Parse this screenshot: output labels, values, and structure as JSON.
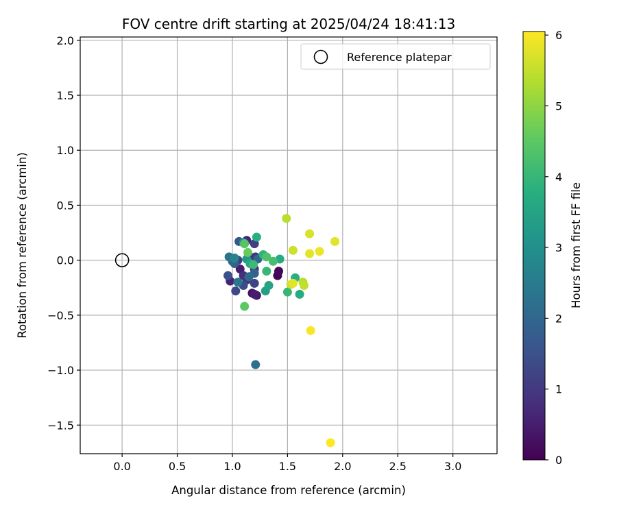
{
  "chart_data": {
    "type": "scatter",
    "title": "FOV centre drift starting at 2025/04/24 18:41:13",
    "xlabel": "Angular distance from reference (arcmin)",
    "ylabel": "Rotation from reference (arcmin)",
    "xlim": [
      -0.38,
      3.4
    ],
    "ylim": [
      -1.76,
      2.03
    ],
    "x_ticks": [
      "0.0",
      "0.5",
      "1.0",
      "1.5",
      "2.0",
      "2.5",
      "3.0"
    ],
    "y_ticks": [
      "2.0",
      "1.5",
      "1.0",
      "0.5",
      "0.0",
      "−0.5",
      "−1.0",
      "−1.5"
    ],
    "grid": true,
    "legend": {
      "placement": "top-right",
      "entries": [
        "Reference platepar"
      ]
    },
    "colorbar": {
      "label": "Hours from first FF file",
      "range": [
        0,
        6.05
      ],
      "ticks": [
        "0",
        "1",
        "2",
        "3",
        "4",
        "5",
        "6"
      ],
      "colormap": "viridis"
    },
    "reference_point": {
      "x": 0.0,
      "y": 0.0,
      "label": "Reference platepar"
    },
    "points": [
      {
        "x": 1.41,
        "y": -0.14,
        "t": 0.05
      },
      {
        "x": 1.42,
        "y": -0.1,
        "t": 0.1
      },
      {
        "x": 1.18,
        "y": -0.3,
        "t": 0.3
      },
      {
        "x": 1.22,
        "y": -0.32,
        "t": 0.4
      },
      {
        "x": 1.2,
        "y": -0.31,
        "t": 0.5
      },
      {
        "x": 1.07,
        "y": -0.08,
        "t": 0.5
      },
      {
        "x": 1.13,
        "y": 0.18,
        "t": 0.6
      },
      {
        "x": 0.98,
        "y": -0.19,
        "t": 0.6
      },
      {
        "x": 1.1,
        "y": -0.14,
        "t": 0.8
      },
      {
        "x": 1.15,
        "y": 0.04,
        "t": 0.8
      },
      {
        "x": 1.2,
        "y": -0.08,
        "t": 0.9
      },
      {
        "x": 1.21,
        "y": 0.03,
        "t": 0.9
      },
      {
        "x": 1.13,
        "y": -0.18,
        "t": 1.0
      },
      {
        "x": 1.2,
        "y": 0.15,
        "t": 1.1
      },
      {
        "x": 1.05,
        "y": 0.0,
        "t": 1.1
      },
      {
        "x": 1.2,
        "y": -0.21,
        "t": 1.2
      },
      {
        "x": 1.03,
        "y": -0.28,
        "t": 1.3
      },
      {
        "x": 1.1,
        "y": -0.23,
        "t": 1.4
      },
      {
        "x": 0.96,
        "y": -0.14,
        "t": 1.5
      },
      {
        "x": 1.06,
        "y": 0.17,
        "t": 1.6
      },
      {
        "x": 1.02,
        "y": -0.03,
        "t": 1.8
      },
      {
        "x": 1.2,
        "y": -0.12,
        "t": 1.9
      },
      {
        "x": 1.0,
        "y": -0.01,
        "t": 2.0
      },
      {
        "x": 1.23,
        "y": 0.01,
        "t": 2.0
      },
      {
        "x": 1.15,
        "y": -0.15,
        "t": 2.1
      },
      {
        "x": 1.21,
        "y": -0.95,
        "t": 2.2
      },
      {
        "x": 0.97,
        "y": 0.03,
        "t": 2.3
      },
      {
        "x": 1.05,
        "y": -0.2,
        "t": 2.4
      },
      {
        "x": 1.02,
        "y": 0.02,
        "t": 2.7
      },
      {
        "x": 1.1,
        "y": 0.16,
        "t": 3.0
      },
      {
        "x": 1.13,
        "y": 0.01,
        "t": 3.2
      },
      {
        "x": 1.3,
        "y": -0.28,
        "t": 3.4
      },
      {
        "x": 1.33,
        "y": -0.23,
        "t": 3.5
      },
      {
        "x": 1.16,
        "y": -0.03,
        "t": 3.6
      },
      {
        "x": 1.61,
        "y": -0.31,
        "t": 3.7
      },
      {
        "x": 1.43,
        "y": 0.01,
        "t": 3.7
      },
      {
        "x": 1.22,
        "y": 0.21,
        "t": 3.8
      },
      {
        "x": 1.57,
        "y": -0.16,
        "t": 3.8
      },
      {
        "x": 1.28,
        "y": 0.05,
        "t": 3.9
      },
      {
        "x": 1.31,
        "y": -0.1,
        "t": 4.0
      },
      {
        "x": 1.5,
        "y": -0.29,
        "t": 4.0
      },
      {
        "x": 1.19,
        "y": -0.04,
        "t": 4.1
      },
      {
        "x": 1.37,
        "y": -0.01,
        "t": 4.2
      },
      {
        "x": 1.31,
        "y": 0.03,
        "t": 4.3
      },
      {
        "x": 1.11,
        "y": 0.15,
        "t": 4.4
      },
      {
        "x": 1.11,
        "y": -0.42,
        "t": 4.5
      },
      {
        "x": 1.14,
        "y": 0.07,
        "t": 4.6
      },
      {
        "x": 1.49,
        "y": 0.38,
        "t": 5.4
      },
      {
        "x": 1.64,
        "y": -0.2,
        "t": 5.4
      },
      {
        "x": 1.65,
        "y": -0.23,
        "t": 5.5
      },
      {
        "x": 1.55,
        "y": 0.09,
        "t": 5.6
      },
      {
        "x": 1.53,
        "y": -0.22,
        "t": 5.6
      },
      {
        "x": 1.7,
        "y": 0.24,
        "t": 5.7
      },
      {
        "x": 1.55,
        "y": -0.21,
        "t": 5.8
      },
      {
        "x": 1.7,
        "y": 0.06,
        "t": 5.8
      },
      {
        "x": 1.93,
        "y": 0.17,
        "t": 5.8
      },
      {
        "x": 1.79,
        "y": 0.08,
        "t": 5.9
      },
      {
        "x": 1.71,
        "y": -0.64,
        "t": 6.0
      },
      {
        "x": 1.89,
        "y": -1.66,
        "t": 6.05
      }
    ]
  }
}
